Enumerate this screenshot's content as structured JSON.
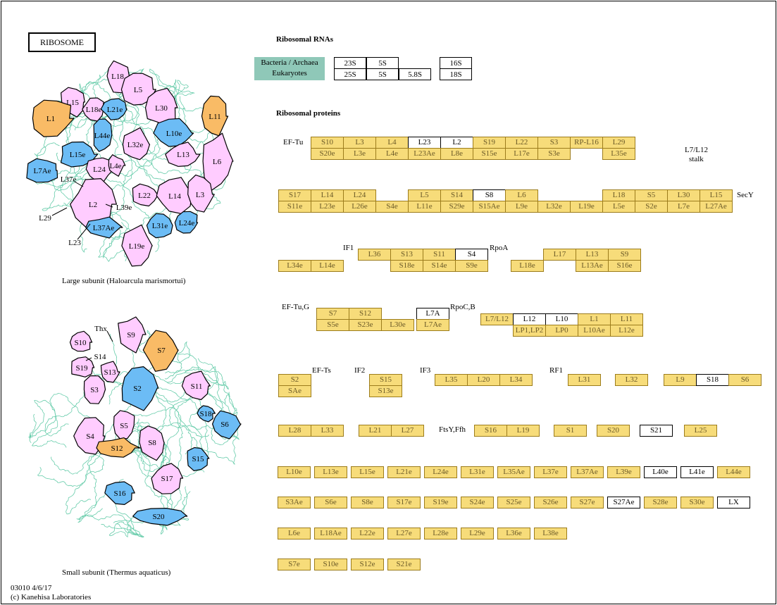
{
  "title": "RIBOSOME",
  "rna_section": {
    "heading": "Ribosomal RNAs",
    "legend": [
      "Bacteria / Archaea",
      "Eukaryotes"
    ],
    "bacteria": [
      "23S",
      "5S",
      "16S"
    ],
    "eukaryotes": [
      "25S",
      "5S",
      "5.8S",
      "18S"
    ]
  },
  "protein_section": {
    "heading": "Ribosomal proteins"
  },
  "colors": {
    "present": "#f7dc7a",
    "absent": "#ffffff",
    "legend": "#8fc8b8",
    "pink": "#ffccff",
    "blue": "#6cbcf5",
    "orange": "#f9bb66",
    "rna": "#66ccaa"
  },
  "uncolored": [
    "L23",
    "L2",
    "S8",
    "S4",
    "L7A",
    "L12",
    "L10",
    "S18",
    "S21",
    "L40e",
    "L41e",
    "S27Ae",
    "LX"
  ],
  "groups": [
    {
      "top": [
        "S10",
        "L3",
        "L4",
        "L23",
        "L2",
        "S19",
        "L22",
        "S3",
        "RP-L16",
        "L29"
      ],
      "bottom": [
        "S20e",
        "L3e",
        "L4e",
        "L23Ae",
        "L8e",
        "S15e",
        "L17e",
        "S3e",
        null,
        "L35e"
      ]
    },
    {
      "top": [
        "S17",
        "L14",
        "L24",
        null,
        "L5",
        "S14",
        "S8",
        "L6",
        null,
        null,
        "L18",
        "S5",
        "L30",
        "L15"
      ],
      "bottom": [
        "S11e",
        "L23e",
        "L26e",
        "S4e",
        "L11e",
        "S29e",
        "S15Ae",
        "L9e",
        "L32e",
        "L19e",
        "L5e",
        "S2e",
        "L7e",
        "L27Ae"
      ]
    },
    {
      "top": [
        null,
        null
      ],
      "bottom": [
        "L34e",
        "L14e"
      ]
    },
    {
      "top": [
        "L36",
        "S13",
        "S11",
        "S4"
      ],
      "bottom": [
        null,
        "S18e",
        "S14e",
        "S9e"
      ]
    },
    {
      "top": [
        null,
        "L17",
        "L13",
        "S9"
      ],
      "bottom": [
        "L18e",
        null,
        "L13Ae",
        "S16e"
      ]
    },
    {
      "top": [
        "S7",
        "S12",
        null
      ],
      "bottom": [
        "S5e",
        "S23e",
        "L30e"
      ]
    },
    {
      "top": [
        "L7A"
      ],
      "bottom": [
        "L7Ae"
      ]
    },
    {
      "top": [
        "L7/L12",
        "L12",
        "L10",
        "L1",
        "L11"
      ],
      "bottom": [
        null,
        "LP1,LP2",
        "LP0",
        "L10Ae",
        "L12e"
      ]
    },
    {
      "top": [
        "S2"
      ],
      "bottom": [
        "SAe"
      ]
    },
    {
      "top": [
        "S15"
      ],
      "bottom": [
        "S13e"
      ]
    },
    {
      "top": [
        "L35",
        "L20",
        "L34"
      ],
      "bottom": []
    },
    {
      "top": [
        "L31"
      ],
      "bottom": []
    },
    {
      "top": [
        "L32"
      ],
      "bottom": []
    },
    {
      "top": [
        "L9",
        "S18",
        "S6"
      ],
      "bottom": []
    },
    {
      "top": [
        "L28",
        "L33"
      ],
      "bottom": []
    },
    {
      "top": [
        "L21",
        "L27"
      ],
      "bottom": []
    },
    {
      "top": [
        "S16",
        "L19"
      ],
      "bottom": []
    },
    {
      "top": [
        "S1"
      ],
      "bottom": []
    },
    {
      "top": [
        "S20"
      ],
      "bottom": []
    },
    {
      "top": [
        "S21"
      ],
      "bottom": []
    },
    {
      "top": [
        "L25"
      ],
      "bottom": []
    }
  ],
  "euk_rows": [
    [
      "L10e",
      "L13e",
      "L15e",
      "L21e",
      "L24e",
      "L31e",
      "L35Ae",
      "L37e",
      "L37Ae",
      "L39e",
      "L40e",
      "L41e",
      "L44e"
    ],
    [
      "S3Ae",
      "S6e",
      "S8e",
      "S17e",
      "S19e",
      "S24e",
      "S25e",
      "S26e",
      "S27e",
      "S27Ae",
      "S28e",
      "S30e",
      "LX"
    ],
    [
      "L6e",
      "L18Ae",
      "L22e",
      "L27e",
      "L28e",
      "L29e",
      "L36e",
      "L38e"
    ],
    [
      "S7e",
      "S10e",
      "S12e",
      "S21e"
    ]
  ],
  "factor_labels": [
    "EF-Tu",
    "L7/L12",
    "stalk",
    "SecY",
    "IF1",
    "RpoA",
    "EF-Tu,G",
    "RpoC,B",
    "EF-Ts",
    "IF2",
    "IF3",
    "RF1",
    "FtsY,Ffh"
  ],
  "large_subunit": {
    "caption": "Large subunit (Haloarcula marismortui)",
    "proteins": [
      {
        "label": "L18",
        "color": "pink"
      },
      {
        "label": "L5",
        "color": "pink"
      },
      {
        "label": "L15",
        "color": "pink"
      },
      {
        "label": "L18e",
        "color": "pink"
      },
      {
        "label": "L21e",
        "color": "blue"
      },
      {
        "label": "L30",
        "color": "pink"
      },
      {
        "label": "L11",
        "color": "orange"
      },
      {
        "label": "L1",
        "color": "orange"
      },
      {
        "label": "L44e",
        "color": "blue"
      },
      {
        "label": "L10e",
        "color": "blue"
      },
      {
        "label": "L32e",
        "color": "pink"
      },
      {
        "label": "L15e",
        "color": "blue"
      },
      {
        "label": "L13",
        "color": "pink"
      },
      {
        "label": "L6",
        "color": "pink"
      },
      {
        "label": "L7Ae",
        "color": "blue"
      },
      {
        "label": "L24",
        "color": "pink"
      },
      {
        "label": "L4e",
        "color": "pink"
      },
      {
        "label": "L2",
        "color": "pink"
      },
      {
        "label": "L22",
        "color": "pink"
      },
      {
        "label": "L14",
        "color": "pink"
      },
      {
        "label": "L3",
        "color": "pink"
      },
      {
        "label": "L37Ae",
        "color": "blue"
      },
      {
        "label": "L31e",
        "color": "blue"
      },
      {
        "label": "L24e",
        "color": "blue"
      },
      {
        "label": "L19e",
        "color": "pink"
      }
    ],
    "callouts": [
      "L37e",
      "L39e",
      "L29",
      "L23"
    ]
  },
  "small_subunit": {
    "caption": "Small subunit (Thermus aquaticus)",
    "proteins": [
      {
        "label": "S9",
        "color": "pink"
      },
      {
        "label": "S10",
        "color": "pink"
      },
      {
        "label": "S7",
        "color": "orange"
      },
      {
        "label": "S19",
        "color": "pink"
      },
      {
        "label": "S13",
        "color": "pink"
      },
      {
        "label": "S3",
        "color": "pink"
      },
      {
        "label": "S2",
        "color": "blue"
      },
      {
        "label": "S11",
        "color": "pink"
      },
      {
        "label": "S18",
        "color": "blue"
      },
      {
        "label": "S6",
        "color": "blue"
      },
      {
        "label": "S4",
        "color": "pink"
      },
      {
        "label": "S5",
        "color": "pink"
      },
      {
        "label": "S12",
        "color": "orange"
      },
      {
        "label": "S8",
        "color": "pink"
      },
      {
        "label": "S15",
        "color": "blue"
      },
      {
        "label": "S17",
        "color": "pink"
      },
      {
        "label": "S16",
        "color": "blue"
      },
      {
        "label": "S20",
        "color": "blue"
      }
    ],
    "callouts": [
      "Thx",
      "S14"
    ]
  },
  "footer": {
    "id_date": "03010 4/6/17",
    "copyright": "(c) Kanehisa Laboratories"
  }
}
